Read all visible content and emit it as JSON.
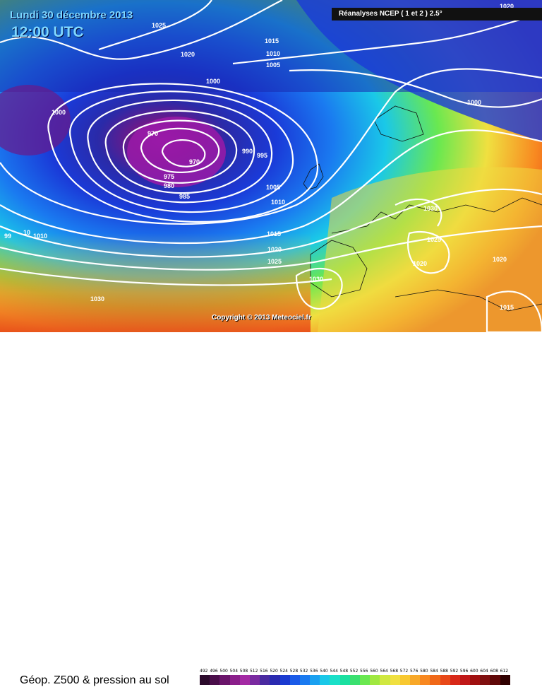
{
  "header": {
    "date": "Lundi 30 décembre 2013",
    "time": "12:00 UTC",
    "source": "Réanalyses NCEP ( 1 et 2 ) 2.5°"
  },
  "copyright": "Copyright © 2013 Meteociel.fr",
  "caption": "Géop. Z500 & pression au sol",
  "legend": {
    "labels": [
      "492",
      "496",
      "500",
      "504",
      "508",
      "512",
      "516",
      "520",
      "524",
      "528",
      "532",
      "536",
      "540",
      "544",
      "548",
      "552",
      "556",
      "560",
      "564",
      "568",
      "572",
      "576",
      "580",
      "584",
      "588",
      "592",
      "596",
      "600",
      "604",
      "608",
      "612"
    ],
    "colors": [
      "#2b0a2b",
      "#4a0e4a",
      "#6a146a",
      "#8a1e8a",
      "#a42aa4",
      "#7a2aa0",
      "#4a2aa0",
      "#2a2ab0",
      "#1a3ad0",
      "#1a5ae8",
      "#1a7af0",
      "#1aa0f0",
      "#1ac8e8",
      "#1ae0c8",
      "#1ae0a0",
      "#3ae070",
      "#6ae850",
      "#a0e840",
      "#d0e840",
      "#f0e040",
      "#f8c830",
      "#f8a828",
      "#f88820",
      "#f06818",
      "#e84818",
      "#d82818",
      "#c01818",
      "#a01010",
      "#801010",
      "#600808",
      "#300000"
    ]
  },
  "isobars": [
    {
      "label": "1025"
    },
    {
      "label": "1020"
    },
    {
      "label": "1000"
    },
    {
      "label": "1000"
    },
    {
      "label": "1015"
    },
    {
      "label": "1010"
    },
    {
      "label": "1005"
    },
    {
      "label": "1000"
    },
    {
      "label": "970"
    },
    {
      "label": "970"
    },
    {
      "label": "975"
    },
    {
      "label": "980"
    },
    {
      "label": "985"
    },
    {
      "label": "990"
    },
    {
      "label": "995"
    },
    {
      "label": "1005"
    },
    {
      "label": "1010"
    },
    {
      "label": "1030"
    },
    {
      "label": "1015"
    },
    {
      "label": "1020"
    },
    {
      "label": "1025"
    },
    {
      "label": "1030"
    },
    {
      "label": "1025"
    },
    {
      "label": "1020"
    },
    {
      "label": "1020"
    },
    {
      "label": "1015"
    },
    {
      "label": "1030"
    },
    {
      "label": "1010"
    },
    {
      "label": "99"
    },
    {
      "label": "10"
    },
    {
      "label": "1020"
    }
  ]
}
